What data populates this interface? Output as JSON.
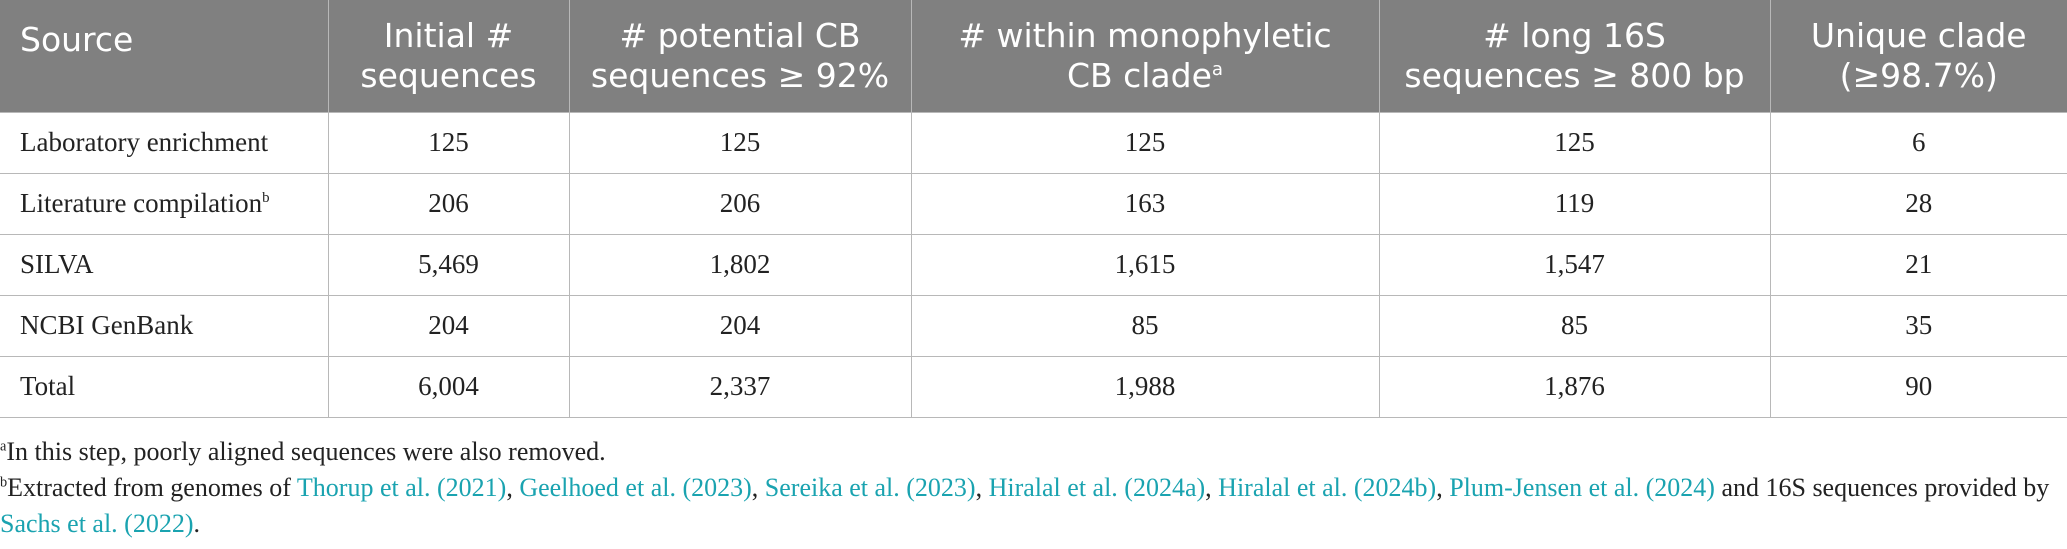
{
  "table": {
    "headers": [
      {
        "line1": "Source",
        "line2": "",
        "sup": ""
      },
      {
        "line1": "Initial #",
        "line2": "sequences",
        "sup": ""
      },
      {
        "line1": "# potential CB",
        "line2": "sequences ≥ 92%",
        "sup": ""
      },
      {
        "line1": "# within monophyletic",
        "line2": "CB clade",
        "sup": "a"
      },
      {
        "line1": "# long 16S",
        "line2": "sequences ≥ 800 bp",
        "sup": ""
      },
      {
        "line1": "Unique clade",
        "line2": "(≥98.7%)",
        "sup": ""
      }
    ],
    "rows": [
      {
        "source": "Laboratory enrichment",
        "source_sup": "",
        "cells": [
          "125",
          "125",
          "125",
          "125",
          "6"
        ]
      },
      {
        "source": "Literature compilation",
        "source_sup": "b",
        "cells": [
          "206",
          "206",
          "163",
          "119",
          "28"
        ]
      },
      {
        "source": "SILVA",
        "source_sup": "",
        "cells": [
          "5,469",
          "1,802",
          "1,615",
          "1,547",
          "21"
        ]
      },
      {
        "source": "NCBI GenBank",
        "source_sup": "",
        "cells": [
          "204",
          "204",
          "85",
          "85",
          "35"
        ]
      },
      {
        "source": "Total",
        "source_sup": "",
        "cells": [
          "6,004",
          "2,337",
          "1,988",
          "1,876",
          "90"
        ]
      }
    ]
  },
  "footnotes": {
    "a": {
      "mark": "a",
      "text": "In this step, poorly aligned sequences were also removed."
    },
    "b": {
      "mark": "b",
      "prefix": "Extracted from genomes of ",
      "links": [
        "Thorup et al. (2021)",
        "Geelhoed et al. (2023)",
        "Sereika et al. (2023)",
        "Hiralal et al. (2024a)",
        "Hiralal et al. (2024b)",
        "Plum-Jensen et al. (2024)"
      ],
      "sep": ", ",
      "middle": " and 16S sequences provided by ",
      "last_link": "Sachs et al. (2022)",
      "suffix": "."
    }
  },
  "colors": {
    "header_bg": "#808080",
    "header_text": "#ffffff",
    "link": "#1aa3b0",
    "border": "#b8b8b8"
  }
}
